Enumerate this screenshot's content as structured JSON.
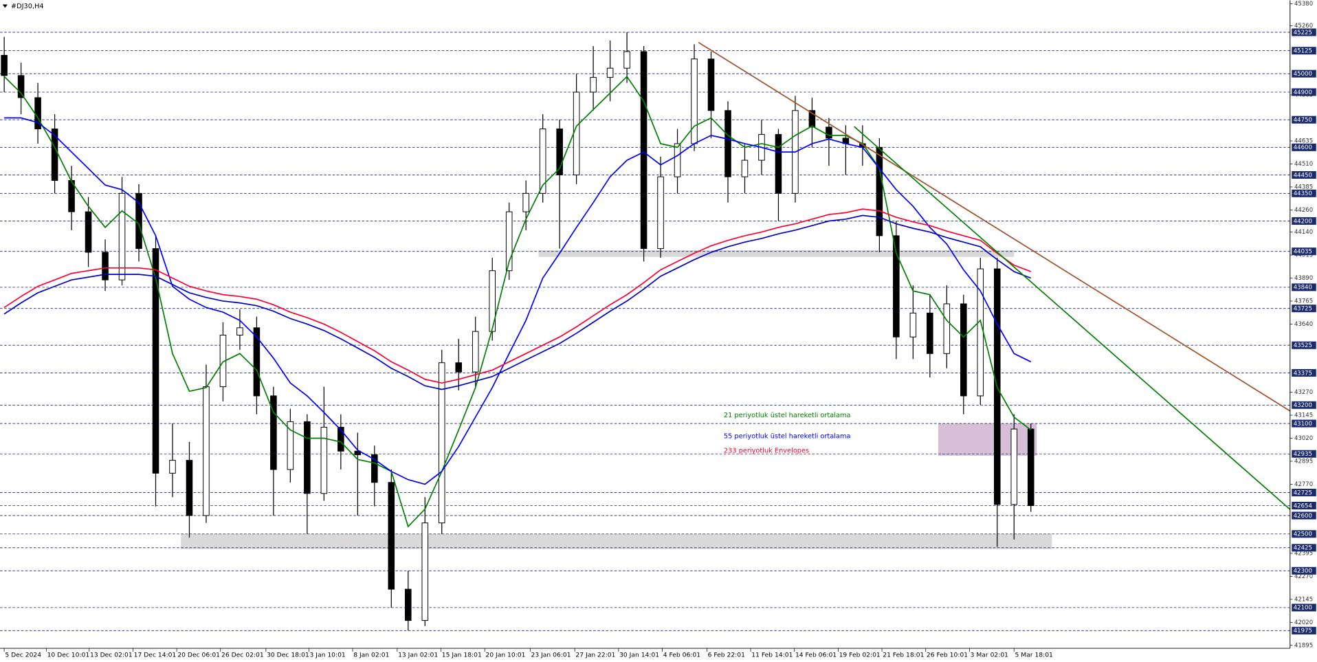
{
  "chart_data": {
    "type": "candlestick",
    "title": "#DJ30,H4",
    "up_color": "#ffffff",
    "down_color": "#000000",
    "open": [
      45100,
      44990,
      44870,
      44700,
      44420,
      44250,
      44030,
      43880,
      44350,
      44050,
      42830,
      42900,
      42600,
      43300,
      43580,
      43620,
      43250,
      42850,
      43110,
      42720,
      43080,
      42950,
      42930,
      42780,
      42200,
      42030,
      42560,
      43430,
      43380,
      43600,
      43930,
      44250,
      44350,
      44700,
      44450,
      44900,
      44980,
      45030,
      45120,
      44050,
      44440,
      44620,
      45080,
      44800,
      44440,
      44530,
      44670,
      44350,
      44800,
      44710,
      44650,
      44620,
      44600,
      44120,
      43570,
      43700,
      43480,
      43750,
      43250,
      43940,
      42660,
      43070
    ],
    "high": [
      45200,
      45060,
      44950,
      44780,
      44500,
      44330,
      44100,
      44440,
      44400,
      44120,
      43100,
      43000,
      43420,
      43650,
      43720,
      43680,
      43300,
      43180,
      43150,
      43300,
      43150,
      43050,
      42980,
      42850,
      42300,
      42700,
      43500,
      43560,
      43680,
      44000,
      44300,
      44420,
      44780,
      44750,
      45000,
      45150,
      45180,
      45225,
      45150,
      44550,
      44700,
      45160,
      45120,
      44850,
      44620,
      44750,
      44700,
      44880,
      44870,
      44760,
      44720,
      44720,
      44650,
      44200,
      43850,
      43800,
      43850,
      43800,
      44000,
      44000,
      43150,
      43100
    ],
    "low": [
      44900,
      44780,
      44620,
      44350,
      44150,
      43950,
      43820,
      43850,
      43980,
      42650,
      42700,
      42480,
      42560,
      43220,
      43500,
      43150,
      42600,
      42780,
      42500,
      42680,
      42850,
      42600,
      42650,
      42100,
      41975,
      42000,
      42500,
      43280,
      43300,
      43550,
      43880,
      44150,
      44300,
      44050,
      44400,
      44800,
      44850,
      44950,
      43980,
      44000,
      44350,
      44580,
      44650,
      44300,
      44350,
      44450,
      44200,
      44300,
      44600,
      44500,
      44450,
      44500,
      44030,
      43450,
      43450,
      43350,
      43400,
      43150,
      43200,
      42430,
      42470,
      42620
    ],
    "close": [
      44990,
      44870,
      44700,
      44420,
      44250,
      44030,
      43880,
      44350,
      44050,
      42830,
      42900,
      42600,
      43300,
      43580,
      43620,
      43250,
      42850,
      43110,
      42720,
      43080,
      42950,
      42930,
      42780,
      42200,
      42030,
      42560,
      43430,
      43380,
      43600,
      43930,
      44250,
      44350,
      44700,
      44450,
      44900,
      44980,
      45030,
      45120,
      44050,
      44440,
      44620,
      45080,
      44800,
      44440,
      44530,
      44670,
      44350,
      44800,
      44710,
      44650,
      44620,
      44600,
      44120,
      43570,
      43700,
      43480,
      43750,
      43250,
      43940,
      42660,
      43070,
      42654
    ],
    "series": [
      {
        "name": "21 periyotluk üstel hareketli ortalama",
        "color": "#008000",
        "values": [
          44985,
          44895,
          44760,
          44600,
          44415,
          44280,
          44165,
          44255,
          44185,
          43890,
          43480,
          43275,
          43295,
          43435,
          43480,
          43390,
          43160,
          43065,
          43020,
          43020,
          43000,
          42905,
          42885,
          42840,
          42540,
          42635,
          42840,
          43065,
          43295,
          43615,
          43980,
          44210,
          44395,
          44485,
          44715,
          44805,
          44895,
          44985,
          44850,
          44620,
          44600,
          44715,
          44760,
          44665,
          44600,
          44620,
          44600,
          44665,
          44715,
          44665,
          44665,
          44620,
          44485,
          44025,
          43820,
          43800,
          43660,
          43570,
          43660,
          43295,
          43135,
          43065
        ]
      },
      {
        "name": "55 periyotluk üstel hareketli ortalama",
        "color": "#0000ff",
        "values": [
          44760,
          44760,
          44735,
          44665,
          44575,
          44485,
          44395,
          44370,
          44300,
          44120,
          43845,
          43775,
          43730,
          43705,
          43660,
          43570,
          43455,
          43320,
          43250,
          43160,
          43065,
          42955,
          42905,
          42840,
          42795,
          42770,
          42840,
          42975,
          43135,
          43295,
          43480,
          43660,
          43890,
          44025,
          44165,
          44300,
          44440,
          44530,
          44575,
          44505,
          44555,
          44620,
          44665,
          44645,
          44620,
          44600,
          44575,
          44575,
          44620,
          44645,
          44620,
          44600,
          44485,
          44370,
          44280,
          44165,
          44075,
          43935,
          43820,
          43640,
          43480,
          43435
        ]
      },
      {
        "name": "233 periyotluk Envelopes",
        "color": "#ff0033",
        "values": [
          43730,
          43790,
          43845,
          43880,
          43915,
          43930,
          43945,
          43945,
          43945,
          43935,
          43890,
          43845,
          43820,
          43800,
          43790,
          43775,
          43745,
          43705,
          43675,
          43640,
          43595,
          43545,
          43495,
          43435,
          43390,
          43340,
          43320,
          43340,
          43365,
          43390,
          43435,
          43480,
          43525,
          43570,
          43625,
          43685,
          43745,
          43800,
          43865,
          43935,
          43980,
          44025,
          44065,
          44095,
          44120,
          44140,
          44165,
          44185,
          44210,
          44235,
          44245,
          44265,
          44255,
          44220,
          44195,
          44175,
          44145,
          44120,
          44095,
          44025,
          43960,
          43925
        ]
      },
      {
        "color": "#0000cd",
        "values": [
          43695,
          43755,
          43810,
          43845,
          43880,
          43895,
          43910,
          43910,
          43910,
          43900,
          43855,
          43810,
          43785,
          43765,
          43755,
          43740,
          43710,
          43670,
          43640,
          43605,
          43560,
          43510,
          43460,
          43400,
          43355,
          43305,
          43285,
          43305,
          43330,
          43355,
          43400,
          43445,
          43490,
          43535,
          43590,
          43650,
          43710,
          43765,
          43830,
          43900,
          43945,
          43990,
          44030,
          44060,
          44085,
          44105,
          44130,
          44150,
          44175,
          44200,
          44210,
          44230,
          44220,
          44185,
          44160,
          44140,
          44110,
          44085,
          44060,
          43990,
          43925,
          43890
        ]
      }
    ],
    "trendlines": [
      {
        "color": "#a0522d",
        "x": [
          41.25,
          76.4
        ],
        "values": [
          45170,
          43168
        ]
      },
      {
        "color": "#008000",
        "x": [
          50.5,
          76.4
        ],
        "values": [
          44713,
          42633
        ]
      }
    ],
    "zones": [
      {
        "color": "#d9d9d9",
        "x": [
          31.75,
          60
        ],
        "y": [
          44041,
          44005
        ]
      },
      {
        "color": "#d9d9d9",
        "x": [
          10.5,
          62.25
        ],
        "y": [
          42501,
          42418
        ]
      },
      {
        "color": "#d8bfd8",
        "x": [
          55.5,
          61.35
        ],
        "y": [
          43100,
          42925
        ]
      }
    ],
    "xlim": [
      -0.25,
      76.4
    ],
    "xticks": [
      {
        "value": 0,
        "label": "5 Dec 2024"
      },
      {
        "value": 2.5,
        "label": "10 Dec 10:01"
      },
      {
        "value": 5.05,
        "label": "13 Dec 02:01"
      },
      {
        "value": 7.65,
        "label": "17 Dec 14:01"
      },
      {
        "value": 10.25,
        "label": "20 Dec 06:01"
      },
      {
        "value": 12.85,
        "label": "26 Dec 02:01"
      },
      {
        "value": 15.55,
        "label": "30 Dec 18:01"
      },
      {
        "value": 18.1,
        "label": "3 Jan 10:01"
      },
      {
        "value": 20.7,
        "label": "8 Jan 02:01"
      },
      {
        "value": 23.35,
        "label": "13 Jan 02:01"
      },
      {
        "value": 25.95,
        "label": "15 Jan 18:01"
      },
      {
        "value": 28.55,
        "label": "20 Jan 10:01"
      },
      {
        "value": 31.25,
        "label": "23 Jan 06:01"
      },
      {
        "value": 33.9,
        "label": "27 Jan 22:01"
      },
      {
        "value": 36.5,
        "label": "30 Jan 14:01"
      },
      {
        "value": 39.1,
        "label": "4 Feb 06:01"
      },
      {
        "value": 41.75,
        "label": "6 Feb 22:01"
      },
      {
        "value": 44.35,
        "label": "11 Feb 14:01"
      },
      {
        "value": 46.95,
        "label": "14 Feb 06:01"
      },
      {
        "value": 49.55,
        "label": "19 Feb 02:01"
      },
      {
        "value": 52.15,
        "label": "21 Feb 18:01"
      },
      {
        "value": 54.75,
        "label": "26 Feb 10:01"
      },
      {
        "value": 57.35,
        "label": "3 Mar 02:01"
      },
      {
        "value": 60,
        "label": "5 Mar 18:01"
      }
    ],
    "ylim": [
      41879,
      45399
    ],
    "yticks": [
      45380,
      45260,
      44885,
      44635,
      44510,
      44385,
      44260,
      44140,
      44015,
      43890,
      43765,
      43640,
      43270,
      43145,
      43020,
      42895,
      42770,
      42395,
      42270,
      42145,
      42020,
      41895
    ],
    "levels": [
      45225,
      45125,
      45000,
      44900,
      44750,
      44600,
      44450,
      44350,
      44200,
      44035,
      43840,
      43725,
      43525,
      43375,
      43200,
      43100,
      42935,
      42725,
      42654,
      42600,
      42500,
      42425,
      42300,
      42100,
      41975
    ]
  }
}
